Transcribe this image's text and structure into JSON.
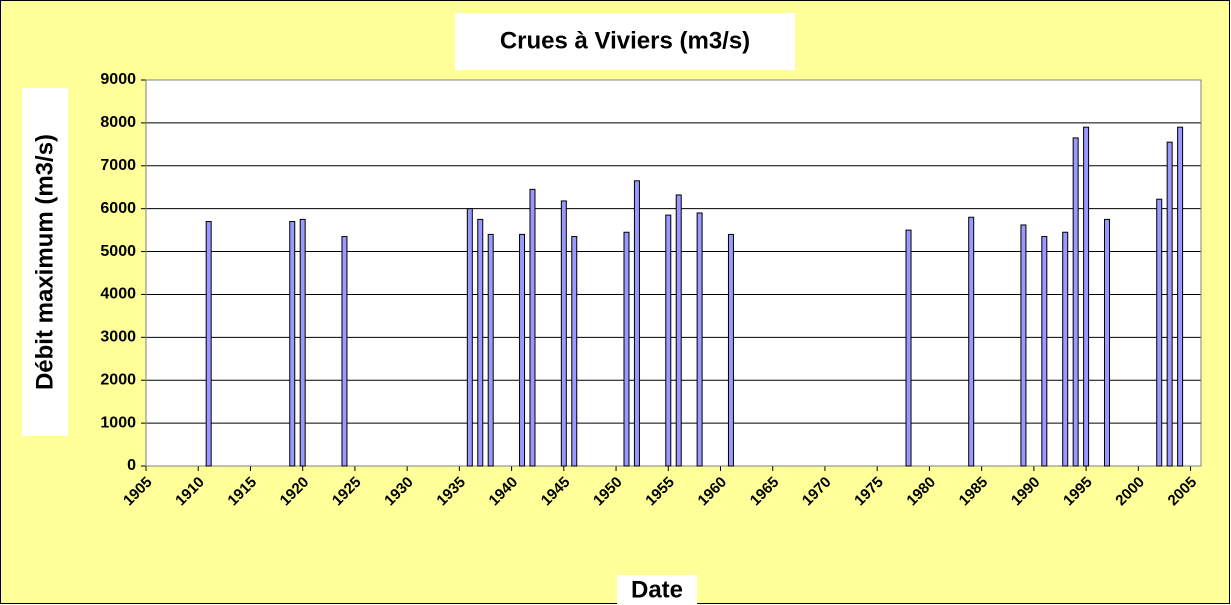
{
  "chart_data": {
    "type": "bar",
    "title": "Crues à Viviers (m3/s)",
    "x_label": "Date",
    "y_label": "Débit maximum (m3/s)",
    "x": [
      1911,
      1919,
      1920,
      1924,
      1936,
      1937,
      1938,
      1941,
      1942,
      1945,
      1946,
      1951,
      1952,
      1955,
      1956,
      1958,
      1961,
      1978,
      1984,
      1989,
      1991,
      1993,
      1994,
      1995,
      1997,
      2002,
      2003,
      2004
    ],
    "values": [
      5700,
      5700,
      5750,
      5350,
      6000,
      5750,
      5400,
      5400,
      6450,
      6180,
      5350,
      5450,
      6650,
      5850,
      6320,
      5900,
      5400,
      5500,
      5800,
      5620,
      5350,
      5450,
      7650,
      7900,
      5750,
      6220,
      7550,
      7900
    ],
    "color": "#9999ff",
    "xlim": [
      1905,
      2006
    ],
    "xticks": [
      1905,
      1910,
      1915,
      1920,
      1925,
      1930,
      1935,
      1940,
      1945,
      1950,
      1955,
      1960,
      1965,
      1970,
      1975,
      1980,
      1985,
      1990,
      1995,
      2000,
      2005
    ],
    "ylim": [
      0,
      9000
    ],
    "yticks": [
      0,
      1000,
      2000,
      3000,
      4000,
      5000,
      6000,
      7000,
      8000,
      9000
    ],
    "grid": true
  }
}
